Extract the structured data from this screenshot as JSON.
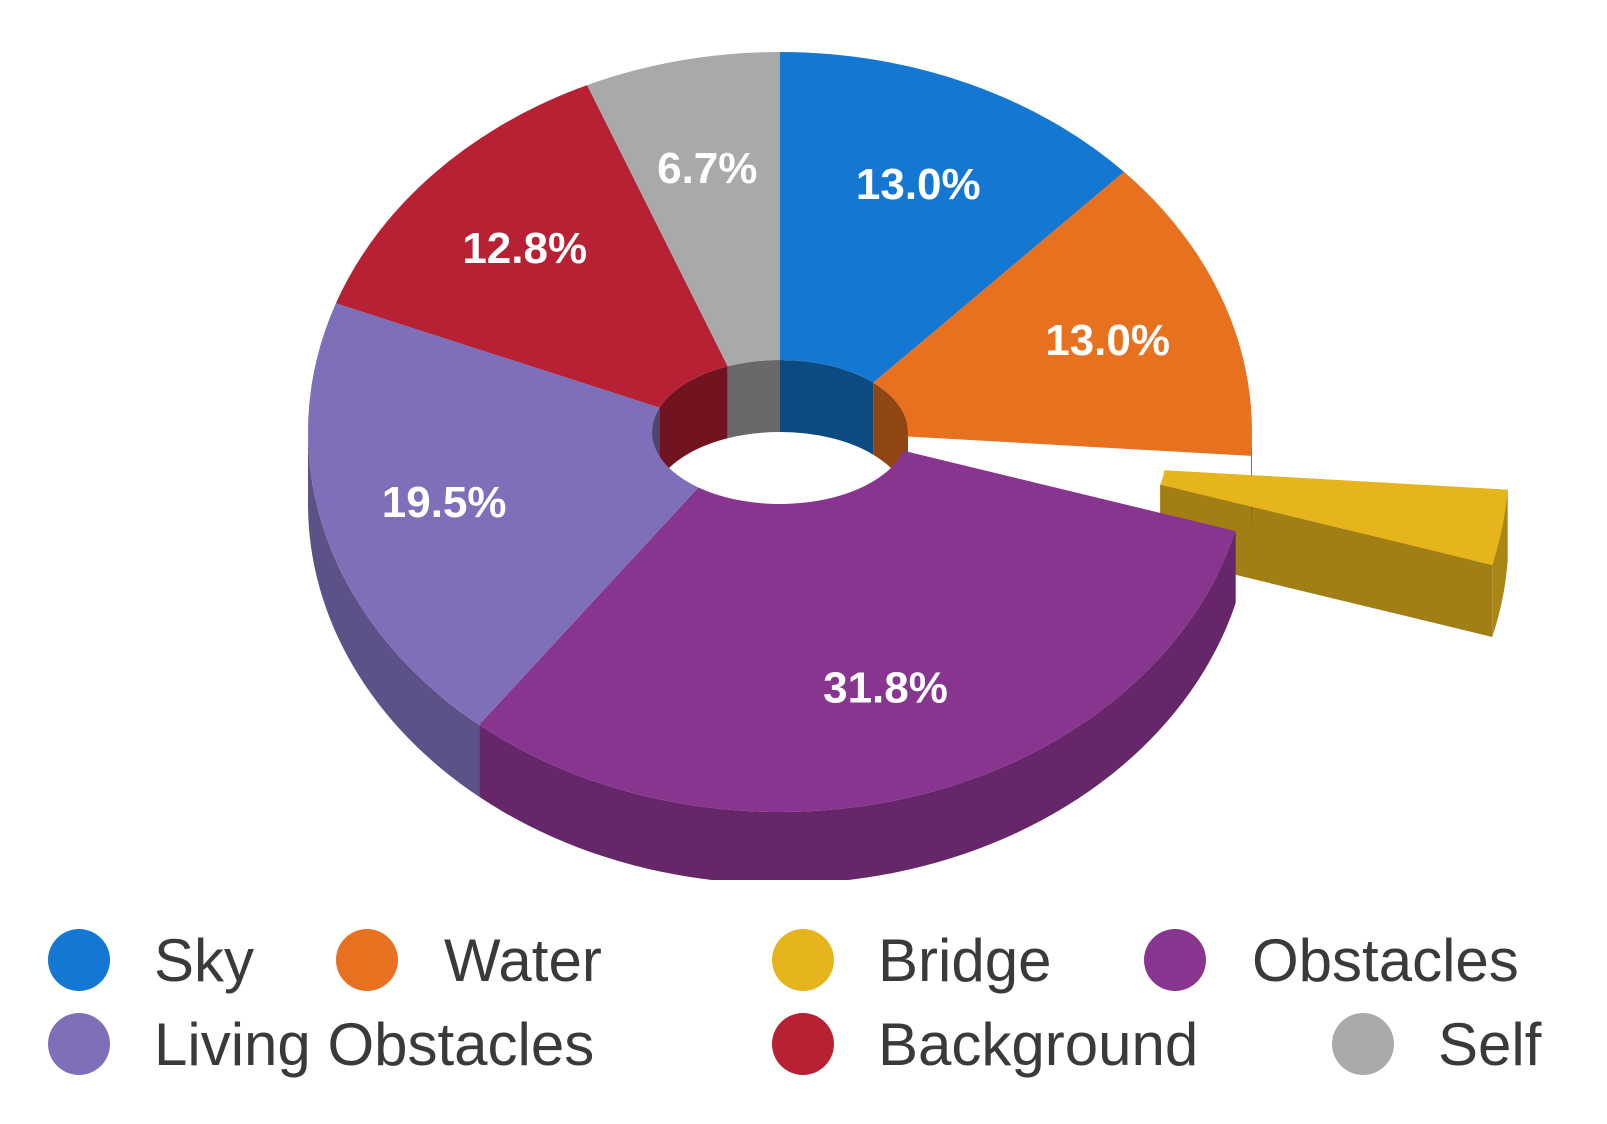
{
  "chart_data": {
    "type": "pie",
    "variant": "3d-donut",
    "title": "",
    "slices": [
      {
        "name": "Sky",
        "value": 13.0,
        "label": "13.0%",
        "color": "#1478d2"
      },
      {
        "name": "Water",
        "value": 13.0,
        "label": "13.0%",
        "color": "#e8711f"
      },
      {
        "name": "Bridge",
        "value": 3.2,
        "label": "",
        "color": "#e6b51e",
        "exploded": true
      },
      {
        "name": "Obstacles",
        "value": 31.8,
        "label": "31.8%",
        "color": "#88358f"
      },
      {
        "name": "Living Obstacles",
        "value": 19.5,
        "label": "19.5%",
        "color": "#7e6fb8"
      },
      {
        "name": "Background",
        "value": 12.8,
        "label": "12.8%",
        "color": "#b72133"
      },
      {
        "name": "Self",
        "value": 6.7,
        "label": "6.7%",
        "color": "#a9a9a9"
      }
    ],
    "legend": {
      "placement": "bottom",
      "rows": [
        [
          "Sky",
          "Water",
          "Bridge",
          "Obstacles"
        ],
        [
          "Living Obstacles",
          "Background",
          "Self"
        ]
      ]
    }
  }
}
